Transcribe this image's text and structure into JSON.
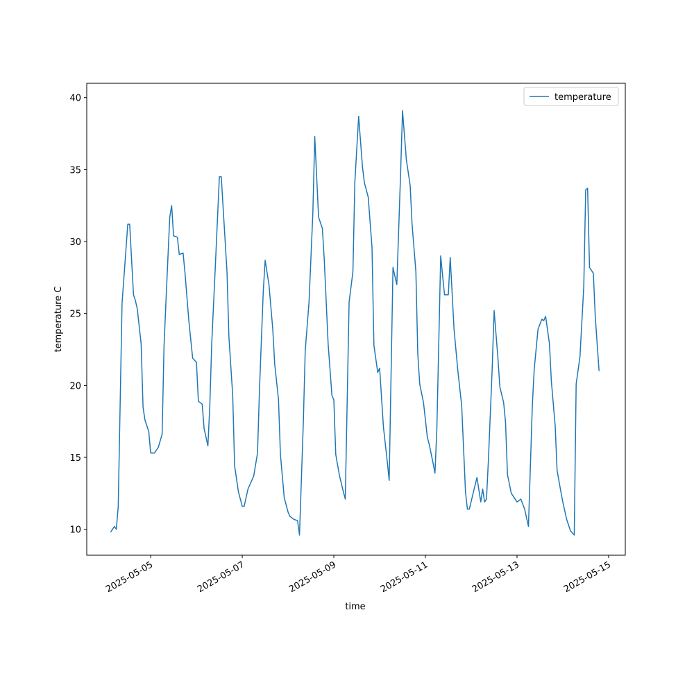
{
  "chart_data": {
    "type": "line",
    "xlabel": "time",
    "ylabel": "temperature C",
    "legend": "upper right",
    "xlim": [
      "2025-05-03T14:30",
      "2025-05-15T08:45"
    ],
    "xticks": [
      "2025-05-05",
      "2025-05-07",
      "2025-05-09",
      "2025-05-11",
      "2025-05-13",
      "2025-05-15"
    ],
    "ylim": [
      8.2,
      41
    ],
    "yticks": [
      10,
      15,
      20,
      25,
      30,
      35,
      40
    ],
    "x": [
      "2025-05-04T03:00",
      "2025-05-04T05:00",
      "2025-05-04T06:00",
      "2025-05-04T07:00",
      "2025-05-04T09:00",
      "2025-05-04T12:00",
      "2025-05-04T13:00",
      "2025-05-04T15:00",
      "2025-05-04T16:00",
      "2025-05-04T17:00",
      "2025-05-04T19:00",
      "2025-05-04T20:00",
      "2025-05-04T21:00",
      "2025-05-04T23:00",
      "2025-05-05T00:00",
      "2025-05-05T02:00",
      "2025-05-05T04:00",
      "2025-05-05T06:00",
      "2025-05-05T07:00",
      "2025-05-05T08:00",
      "2025-05-05T10:00",
      "2025-05-05T11:00",
      "2025-05-05T12:00",
      "2025-05-05T14:00",
      "2025-05-05T15:00",
      "2025-05-05T17:00",
      "2025-05-05T18:00",
      "2025-05-05T20:00",
      "2025-05-05T22:00",
      "2025-05-06T00:00",
      "2025-05-06T01:00",
      "2025-05-06T03:00",
      "2025-05-06T04:00",
      "2025-05-06T06:00",
      "2025-05-06T07:00",
      "2025-05-06T08:00",
      "2025-05-06T10:00",
      "2025-05-06T12:00",
      "2025-05-06T13:00",
      "2025-05-06T16:00",
      "2025-05-06T17:00",
      "2025-05-06T19:00",
      "2025-05-06T20:00",
      "2025-05-06T22:00",
      "2025-05-07T00:00",
      "2025-05-07T01:00",
      "2025-05-07T03:00",
      "2025-05-07T06:00",
      "2025-05-07T08:00",
      "2025-05-07T09:00",
      "2025-05-07T11:00",
      "2025-05-07T12:00",
      "2025-05-07T14:00",
      "2025-05-07T16:00",
      "2025-05-07T17:00",
      "2025-05-07T19:00",
      "2025-05-07T20:00",
      "2025-05-07T22:00",
      "2025-05-08T00:00",
      "2025-05-08T01:00",
      "2025-05-08T03:00",
      "2025-05-08T05:00",
      "2025-05-08T06:00",
      "2025-05-08T08:00",
      "2025-05-08T09:00",
      "2025-05-08T11:00",
      "2025-05-08T13:00",
      "2025-05-08T14:00",
      "2025-05-08T16:00",
      "2025-05-08T18:00",
      "2025-05-08T19:00",
      "2025-05-08T21:00",
      "2025-05-08T23:00",
      "2025-05-09T00:00",
      "2025-05-09T01:00",
      "2025-05-09T03:00",
      "2025-05-09T05:00",
      "2025-05-09T06:00",
      "2025-05-09T08:00",
      "2025-05-09T10:00",
      "2025-05-09T11:00",
      "2025-05-09T13:00",
      "2025-05-09T15:00",
      "2025-05-09T16:00",
      "2025-05-09T18:00",
      "2025-05-09T20:00",
      "2025-05-09T21:00",
      "2025-05-09T23:00",
      "2025-05-10T00:00",
      "2025-05-10T02:00",
      "2025-05-10T04:00",
      "2025-05-10T05:00",
      "2025-05-10T07:00",
      "2025-05-10T09:00",
      "2025-05-10T11:00",
      "2025-05-10T12:00",
      "2025-05-10T14:00",
      "2025-05-10T16:00",
      "2025-05-10T17:00",
      "2025-05-10T19:00",
      "2025-05-10T20:00",
      "2025-05-10T21:00",
      "2025-05-10T23:00",
      "2025-05-11T01:00",
      "2025-05-11T02:00",
      "2025-05-11T04:00",
      "2025-05-11T05:00",
      "2025-05-11T06:00",
      "2025-05-11T08:00",
      "2025-05-11T10:00",
      "2025-05-11T12:00",
      "2025-05-11T13:00",
      "2025-05-11T15:00",
      "2025-05-11T17:00",
      "2025-05-11T19:00",
      "2025-05-11T21:00",
      "2025-05-11T22:00",
      "2025-05-11T23:00",
      "2025-05-12T01:00",
      "2025-05-12T03:00",
      "2025-05-12T05:00",
      "2025-05-12T06:00",
      "2025-05-12T07:00",
      "2025-05-12T08:00",
      "2025-05-12T09:00",
      "2025-05-12T11:00",
      "2025-05-12T12:00",
      "2025-05-12T14:00",
      "2025-05-12T15:00",
      "2025-05-12T17:00",
      "2025-05-12T18:00",
      "2025-05-12T19:00",
      "2025-05-12T21:00",
      "2025-05-13T00:00",
      "2025-05-13T02:00",
      "2025-05-13T04:00",
      "2025-05-13T06:00",
      "2025-05-13T08:00",
      "2025-05-13T09:00",
      "2025-05-13T11:00",
      "2025-05-13T13:00",
      "2025-05-13T14:00",
      "2025-05-13T15:00",
      "2025-05-13T17:00",
      "2025-05-13T18:00",
      "2025-05-13T20:00",
      "2025-05-13T21:00",
      "2025-05-13T23:00",
      "2025-05-14T00:00",
      "2025-05-14T02:00",
      "2025-05-14T04:00",
      "2025-05-14T06:00",
      "2025-05-14T07:00",
      "2025-05-14T09:00",
      "2025-05-14T11:00",
      "2025-05-14T12:00",
      "2025-05-14T13:00",
      "2025-05-14T14:00",
      "2025-05-14T16:00",
      "2025-05-14T17:00",
      "2025-05-14T19:00"
    ],
    "series": [
      {
        "name": "temperature",
        "color": "#1f77b4",
        "values": [
          9.8,
          10.2,
          10.0,
          11.6,
          25.7,
          31.2,
          31.2,
          26.3,
          25.9,
          25.3,
          22.9,
          18.5,
          17.6,
          16.8,
          15.3,
          15.3,
          15.7,
          16.6,
          22.7,
          25.8,
          31.7,
          32.5,
          30.4,
          30.3,
          29.1,
          29.2,
          27.8,
          24.5,
          21.9,
          21.6,
          18.9,
          18.7,
          17.0,
          15.8,
          18.6,
          22.9,
          28.6,
          34.5,
          34.5,
          27.9,
          23.4,
          19.3,
          14.4,
          12.6,
          11.6,
          11.6,
          12.8,
          13.7,
          15.3,
          19.6,
          26.5,
          28.7,
          27.0,
          23.9,
          21.5,
          19.0,
          15.2,
          12.2,
          11.2,
          10.9,
          10.7,
          10.6,
          9.6,
          17.4,
          22.4,
          25.8,
          32.0,
          37.3,
          31.7,
          30.9,
          28.7,
          22.9,
          19.3,
          19.0,
          15.2,
          13.7,
          12.6,
          12.1,
          25.8,
          27.9,
          34.1,
          38.7,
          35.2,
          34.1,
          33.1,
          29.6,
          22.8,
          20.9,
          21.2,
          17.1,
          14.7,
          13.4,
          28.2,
          27.0,
          34.8,
          39.1,
          35.7,
          33.9,
          31.2,
          27.9,
          22.2,
          20.1,
          18.8,
          16.4,
          15.9,
          14.6,
          13.9,
          17.0,
          29.0,
          26.3,
          26.3,
          28.9,
          23.9,
          21.0,
          18.6,
          12.6,
          11.4,
          11.4,
          12.5,
          13.6,
          11.9,
          12.8,
          11.9,
          12.1,
          14.8,
          21.2,
          25.2,
          21.9,
          19.9,
          18.8,
          17.4,
          13.8,
          12.5,
          11.9,
          12.1,
          11.4,
          10.2,
          18.5,
          21.1,
          23.9,
          24.6,
          24.5,
          24.8,
          22.9,
          20.3,
          17.2,
          14.1,
          12.6,
          11.9,
          10.7,
          9.9,
          9.6,
          20.1,
          22.0,
          26.9,
          33.6,
          33.7,
          28.2,
          27.8,
          24.8,
          21.0
        ]
      }
    ]
  }
}
